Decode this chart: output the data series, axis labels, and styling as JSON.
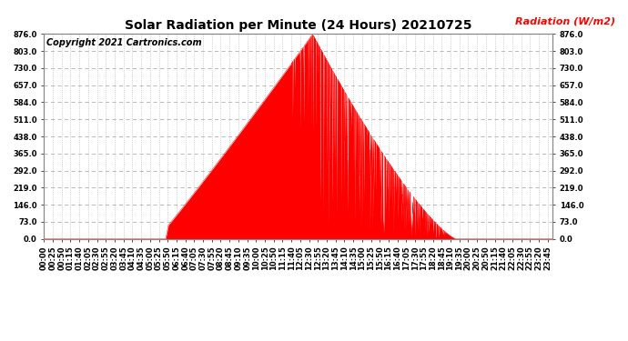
{
  "title": "Solar Radiation per Minute (24 Hours) 20210725",
  "copyright_text": "Copyright 2021 Cartronics.com",
  "ylabel": "Radiation (W/m2)",
  "ylabel_color": "#ff0000",
  "fill_color": "#ff0000",
  "line_color": "#ff0000",
  "background_color": "#ffffff",
  "grid_color": "#b0b0b0",
  "dashed_line_color": "#ff0000",
  "ylim": [
    0.0,
    876.0
  ],
  "yticks": [
    0.0,
    73.0,
    146.0,
    219.0,
    292.0,
    365.0,
    438.0,
    511.0,
    584.0,
    657.0,
    730.0,
    803.0,
    876.0
  ],
  "total_minutes": 1440,
  "sunrise_minute": 318,
  "sunset_minute": 1165,
  "peak_minute": 760,
  "peak_value": 876.0,
  "x_tick_interval": 25,
  "title_fontsize": 10,
  "copyright_fontsize": 7,
  "tick_fontsize": 6,
  "ylabel_fontsize": 8
}
